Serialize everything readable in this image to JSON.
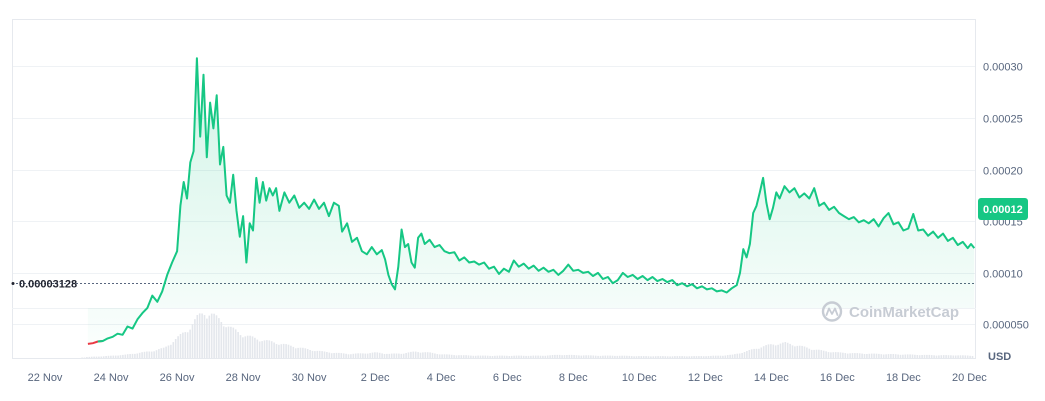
{
  "chart_data": {
    "type": "area",
    "currency": "USD",
    "watermark": "CoinMarketCap",
    "start_price_label": "0.00003128",
    "current_price_label": "0.00012",
    "colors": {
      "line": "#16c784",
      "negative_line": "#ea3943",
      "badge": "#16c784",
      "volume": "#e4e7ec"
    },
    "y_ticks": [
      {
        "value": 5e-05,
        "label": "0.000050"
      },
      {
        "value": 0.0001,
        "label": "0.00010"
      },
      {
        "value": 0.00015,
        "label": "0.00015"
      },
      {
        "value": 0.0002,
        "label": "0.00020"
      },
      {
        "value": 0.00025,
        "label": "0.00025"
      },
      {
        "value": 0.0003,
        "label": "0.00030"
      }
    ],
    "ylim": [
      1.75e-05,
      0.000345
    ],
    "x_ticks": [
      {
        "day": 1,
        "label": "22 Nov"
      },
      {
        "day": 3,
        "label": "24 Nov"
      },
      {
        "day": 5,
        "label": "26 Nov"
      },
      {
        "day": 7,
        "label": "28 Nov"
      },
      {
        "day": 9,
        "label": "30 Nov"
      },
      {
        "day": 11,
        "label": "2 Dec"
      },
      {
        "day": 13,
        "label": "4 Dec"
      },
      {
        "day": 15,
        "label": "6 Dec"
      },
      {
        "day": 17,
        "label": "8 Dec"
      },
      {
        "day": 19,
        "label": "10 Dec"
      },
      {
        "day": 21,
        "label": "12 Dec"
      },
      {
        "day": 23,
        "label": "14 Dec"
      },
      {
        "day": 25,
        "label": "16 Dec"
      },
      {
        "day": 27,
        "label": "18 Dec"
      },
      {
        "day": 29,
        "label": "20 Dec"
      }
    ],
    "xlim": [
      0,
      29.2
    ],
    "series": [
      {
        "values": [
          [
            2.3,
            3.12e-05
          ],
          [
            2.45,
            3.18e-05
          ],
          [
            2.6,
            3.35e-05
          ],
          [
            2.75,
            3.4e-05
          ],
          [
            2.9,
            3.65e-05
          ],
          [
            3.05,
            3.8e-05
          ],
          [
            3.2,
            4.1e-05
          ],
          [
            3.35,
            4e-05
          ],
          [
            3.5,
            4.8e-05
          ],
          [
            3.65,
            4.6e-05
          ],
          [
            3.8,
            5.5e-05
          ],
          [
            3.95,
            6.1e-05
          ],
          [
            4.1,
            6.6e-05
          ],
          [
            4.25,
            7.8e-05
          ],
          [
            4.4,
            7.2e-05
          ],
          [
            4.55,
            8.2e-05
          ],
          [
            4.7,
            9.8e-05
          ],
          [
            4.85,
            0.00011
          ],
          [
            5.0,
            0.000121
          ],
          [
            5.1,
            0.000165
          ],
          [
            5.2,
            0.000188
          ],
          [
            5.3,
            0.000172
          ],
          [
            5.4,
            0.000207
          ],
          [
            5.5,
            0.000218
          ],
          [
            5.6,
            0.000308
          ],
          [
            5.7,
            0.000232
          ],
          [
            5.8,
            0.000292
          ],
          [
            5.9,
            0.000212
          ],
          [
            6.0,
            0.000265
          ],
          [
            6.1,
            0.00024
          ],
          [
            6.2,
            0.000272
          ],
          [
            6.3,
            0.000205
          ],
          [
            6.4,
            0.000222
          ],
          [
            6.5,
            0.000175
          ],
          [
            6.6,
            0.000168
          ],
          [
            6.7,
            0.000195
          ],
          [
            6.8,
            0.00016
          ],
          [
            6.9,
            0.000135
          ],
          [
            7.0,
            0.000155
          ],
          [
            7.1,
            0.00011
          ],
          [
            7.2,
            0.000148
          ],
          [
            7.3,
            0.000141
          ],
          [
            7.4,
            0.000192
          ],
          [
            7.5,
            0.000168
          ],
          [
            7.6,
            0.000188
          ],
          [
            7.7,
            0.00017
          ],
          [
            7.8,
            0.000182
          ],
          [
            7.9,
            0.000175
          ],
          [
            8.0,
            0.000182
          ],
          [
            8.1,
            0.00016
          ],
          [
            8.25,
            0.000178
          ],
          [
            8.4,
            0.000168
          ],
          [
            8.55,
            0.000175
          ],
          [
            8.7,
            0.000163
          ],
          [
            8.85,
            0.000168
          ],
          [
            9.0,
            0.000162
          ],
          [
            9.15,
            0.000171
          ],
          [
            9.3,
            0.000162
          ],
          [
            9.45,
            0.000168
          ],
          [
            9.6,
            0.000155
          ],
          [
            9.75,
            0.000168
          ],
          [
            9.9,
            0.000165
          ],
          [
            10.0,
            0.00014
          ],
          [
            10.15,
            0.000148
          ],
          [
            10.3,
            0.00013
          ],
          [
            10.45,
            0.000134
          ],
          [
            10.6,
            0.000121
          ],
          [
            10.75,
            0.000118
          ],
          [
            10.9,
            0.000125
          ],
          [
            11.05,
            0.000118
          ],
          [
            11.2,
            0.000122
          ],
          [
            11.3,
            0.000113
          ],
          [
            11.4,
            9.8e-05
          ],
          [
            11.5,
            8.9e-05
          ],
          [
            11.6,
            8.4e-05
          ],
          [
            11.7,
            0.000106
          ],
          [
            11.8,
            0.000142
          ],
          [
            11.9,
            0.000125
          ],
          [
            12.0,
            0.000128
          ],
          [
            12.1,
            0.00011
          ],
          [
            12.2,
            0.000105
          ],
          [
            12.3,
            0.000134
          ],
          [
            12.4,
            0.000138
          ],
          [
            12.5,
            0.000128
          ],
          [
            12.65,
            0.000132
          ],
          [
            12.8,
            0.000125
          ],
          [
            12.95,
            0.000127
          ],
          [
            13.1,
            0.000121
          ],
          [
            13.25,
            0.000119
          ],
          [
            13.4,
            0.00012
          ],
          [
            13.55,
            0.000112
          ],
          [
            13.7,
            0.000115
          ],
          [
            13.85,
            0.00011
          ],
          [
            14.0,
            0.000111
          ],
          [
            14.15,
            0.000108
          ],
          [
            14.3,
            0.00011
          ],
          [
            14.45,
            0.000104
          ],
          [
            14.6,
            0.000106
          ],
          [
            14.75,
            9.9e-05
          ],
          [
            14.9,
            0.000104
          ],
          [
            15.05,
            0.000101
          ],
          [
            15.2,
            0.000112
          ],
          [
            15.35,
            0.000106
          ],
          [
            15.5,
            0.000109
          ],
          [
            15.65,
            0.000104
          ],
          [
            15.8,
            0.000107
          ],
          [
            15.95,
            0.000102
          ],
          [
            16.1,
            0.000105
          ],
          [
            16.25,
            0.000101
          ],
          [
            16.4,
            0.000103
          ],
          [
            16.55,
            9.8e-05
          ],
          [
            16.7,
            0.000102
          ],
          [
            16.85,
            0.000108
          ],
          [
            17.0,
            0.000102
          ],
          [
            17.15,
            0.000103
          ],
          [
            17.3,
            0.0001
          ],
          [
            17.45,
            0.000101
          ],
          [
            17.6,
            9.7e-05
          ],
          [
            17.75,
            0.0001
          ],
          [
            17.9,
            9.4e-05
          ],
          [
            18.05,
            9.6e-05
          ],
          [
            18.2,
            9e-05
          ],
          [
            18.35,
            9.3e-05
          ],
          [
            18.5,
            0.0001
          ],
          [
            18.65,
            9.6e-05
          ],
          [
            18.8,
            9.8e-05
          ],
          [
            18.95,
            9.4e-05
          ],
          [
            19.1,
            9.7e-05
          ],
          [
            19.25,
            9.3e-05
          ],
          [
            19.4,
            9.6e-05
          ],
          [
            19.55,
            9.2e-05
          ],
          [
            19.7,
            9.4e-05
          ],
          [
            19.85,
            9.1e-05
          ],
          [
            20.0,
            9.3e-05
          ],
          [
            20.15,
            8.8e-05
          ],
          [
            20.3,
            9e-05
          ],
          [
            20.45,
            8.7e-05
          ],
          [
            20.6,
            8.9e-05
          ],
          [
            20.75,
            8.5e-05
          ],
          [
            20.9,
            8.7e-05
          ],
          [
            21.05,
            8.4e-05
          ],
          [
            21.2,
            8.5e-05
          ],
          [
            21.35,
            8.2e-05
          ],
          [
            21.5,
            8.3e-05
          ],
          [
            21.65,
            8.1e-05
          ],
          [
            21.8,
            8.5e-05
          ],
          [
            21.95,
            8.8e-05
          ],
          [
            22.05,
            0.0001
          ],
          [
            22.15,
            0.000123
          ],
          [
            22.25,
            0.000115
          ],
          [
            22.35,
            0.000128
          ],
          [
            22.45,
            0.000158
          ],
          [
            22.55,
            0.000165
          ],
          [
            22.65,
            0.000178
          ],
          [
            22.75,
            0.000192
          ],
          [
            22.85,
            0.000168
          ],
          [
            22.95,
            0.000152
          ],
          [
            23.05,
            0.000163
          ],
          [
            23.15,
            0.000178
          ],
          [
            23.25,
            0.000172
          ],
          [
            23.4,
            0.000184
          ],
          [
            23.55,
            0.000178
          ],
          [
            23.7,
            0.000182
          ],
          [
            23.85,
            0.000173
          ],
          [
            24.0,
            0.000177
          ],
          [
            24.15,
            0.000172
          ],
          [
            24.3,
            0.000182
          ],
          [
            24.45,
            0.000165
          ],
          [
            24.6,
            0.000168
          ],
          [
            24.75,
            0.000161
          ],
          [
            24.9,
            0.000164
          ],
          [
            25.05,
            0.000158
          ],
          [
            25.2,
            0.000155
          ],
          [
            25.35,
            0.000152
          ],
          [
            25.5,
            0.000154
          ],
          [
            25.65,
            0.000149
          ],
          [
            25.8,
            0.000151
          ],
          [
            25.95,
            0.000148
          ],
          [
            26.1,
            0.000152
          ],
          [
            26.25,
            0.000145
          ],
          [
            26.4,
            0.000153
          ],
          [
            26.55,
            0.000158
          ],
          [
            26.7,
            0.000147
          ],
          [
            26.85,
            0.000149
          ],
          [
            27.0,
            0.000141
          ],
          [
            27.15,
            0.000143
          ],
          [
            27.3,
            0.000157
          ],
          [
            27.45,
            0.000141
          ],
          [
            27.6,
            0.000142
          ],
          [
            27.75,
            0.000136
          ],
          [
            27.9,
            0.00014
          ],
          [
            28.05,
            0.000134
          ],
          [
            28.2,
            0.000138
          ],
          [
            28.35,
            0.000131
          ],
          [
            28.5,
            0.000134
          ],
          [
            28.65,
            0.000127
          ],
          [
            28.8,
            0.00013
          ],
          [
            28.95,
            0.000124
          ],
          [
            29.05,
            0.000128
          ],
          [
            29.15,
            0.000124
          ]
        ]
      }
    ],
    "volume": [
      [
        2.2,
        0.02
      ],
      [
        2.8,
        0.04
      ],
      [
        3.4,
        0.07
      ],
      [
        3.8,
        0.11
      ],
      [
        4.2,
        0.15
      ],
      [
        4.6,
        0.22
      ],
      [
        5.0,
        0.45
      ],
      [
        5.3,
        0.62
      ],
      [
        5.6,
        0.9
      ],
      [
        5.8,
        1.0
      ],
      [
        6.0,
        0.97
      ],
      [
        6.3,
        0.82
      ],
      [
        6.6,
        0.66
      ],
      [
        7.0,
        0.5
      ],
      [
        7.4,
        0.42
      ],
      [
        7.8,
        0.36
      ],
      [
        8.2,
        0.3
      ],
      [
        8.6,
        0.24
      ],
      [
        9.0,
        0.18
      ],
      [
        9.4,
        0.14
      ],
      [
        9.8,
        0.11
      ],
      [
        10.2,
        0.09
      ],
      [
        10.6,
        0.1
      ],
      [
        11.0,
        0.12
      ],
      [
        11.4,
        0.09
      ],
      [
        11.8,
        0.1
      ],
      [
        12.2,
        0.14
      ],
      [
        12.6,
        0.12
      ],
      [
        13.0,
        0.08
      ],
      [
        13.6,
        0.06
      ],
      [
        14.2,
        0.05
      ],
      [
        14.8,
        0.05
      ],
      [
        15.4,
        0.05
      ],
      [
        16.0,
        0.05
      ],
      [
        16.6,
        0.07
      ],
      [
        17.2,
        0.06
      ],
      [
        17.8,
        0.05
      ],
      [
        18.4,
        0.05
      ],
      [
        19.0,
        0.04
      ],
      [
        19.6,
        0.04
      ],
      [
        20.2,
        0.04
      ],
      [
        20.8,
        0.04
      ],
      [
        21.4,
        0.05
      ],
      [
        21.8,
        0.07
      ],
      [
        22.2,
        0.14
      ],
      [
        22.6,
        0.23
      ],
      [
        23.0,
        0.3
      ],
      [
        23.4,
        0.33
      ],
      [
        23.8,
        0.27
      ],
      [
        24.2,
        0.2
      ],
      [
        24.6,
        0.15
      ],
      [
        25.0,
        0.12
      ],
      [
        25.6,
        0.1
      ],
      [
        26.2,
        0.09
      ],
      [
        26.8,
        0.08
      ],
      [
        27.4,
        0.07
      ],
      [
        28.0,
        0.06
      ],
      [
        28.6,
        0.06
      ],
      [
        29.1,
        0.05
      ]
    ]
  }
}
